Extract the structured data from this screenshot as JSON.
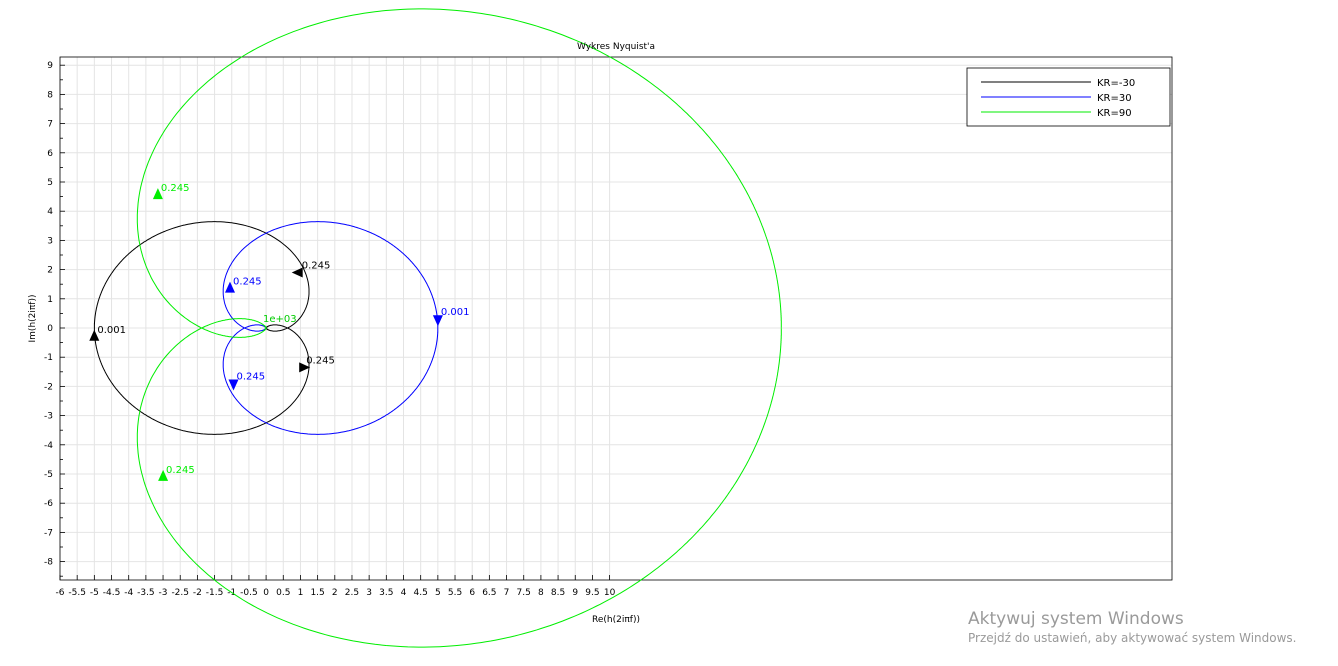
{
  "chart_data": {
    "type": "line",
    "title": "Wykres Nyquist'a",
    "xlabel": "Re(h(2iπf))",
    "ylabel": "Im(h(2iπf))",
    "xlim": [
      -6,
      10
    ],
    "ylim": [
      -8.5,
      9.2
    ],
    "x_ticks": [
      -6,
      -5.5,
      -5,
      -4.5,
      -4,
      -3.5,
      -3,
      -2.5,
      -2,
      -1.5,
      -1,
      -0.5,
      0,
      0.5,
      1,
      1.5,
      2,
      2.5,
      3,
      3.5,
      4,
      4.5,
      5,
      5.5,
      6,
      6.5,
      7,
      7.5,
      8,
      8.5,
      9,
      9.5,
      10
    ],
    "y_ticks": [
      -8,
      -7,
      -6,
      -5,
      -4,
      -3,
      -2,
      -1,
      0,
      1,
      2,
      3,
      4,
      5,
      6,
      7,
      8,
      9
    ],
    "grid": true,
    "legend_position": "top-right",
    "series": [
      {
        "name": "KR=-30",
        "color": "#000000",
        "model": {
          "a": 5,
          "s": -1
        },
        "markers": [
          {
            "x": -5.0,
            "y": -0.3,
            "label": "0.001",
            "dir": "up"
          },
          {
            "x": 0.95,
            "y": 1.9,
            "label": "0.245",
            "dir": "left"
          },
          {
            "x": 1.08,
            "y": -1.35,
            "label": "0.245",
            "dir": "right"
          }
        ]
      },
      {
        "name": "KR=30",
        "color": "#0000ff",
        "model": {
          "a": 5,
          "s": 1
        },
        "markers": [
          {
            "x": 5.0,
            "y": 0.3,
            "label": "0.001",
            "dir": "down"
          },
          {
            "x": -1.05,
            "y": 1.35,
            "label": "0.245",
            "dir": "up"
          },
          {
            "x": -0.95,
            "y": -1.9,
            "label": "0.245",
            "dir": "down"
          }
        ]
      },
      {
        "name": "KR=90",
        "color": "#00ee00",
        "model": {
          "a": 15,
          "s": 1
        },
        "markers": [
          {
            "x": -3.15,
            "y": 4.55,
            "label": "0.245",
            "dir": "up"
          },
          {
            "x": -3.0,
            "y": -5.1,
            "label": "0.245",
            "dir": "up"
          }
        ]
      }
    ],
    "annotations": [
      {
        "text": "1e+03",
        "x": 0.4,
        "y": 0.2,
        "color": "#00cc00"
      }
    ]
  },
  "watermark": {
    "line1": "Aktywuj system Windows",
    "line2": "Przejdź do ustawień, aby aktywować system Windows."
  }
}
